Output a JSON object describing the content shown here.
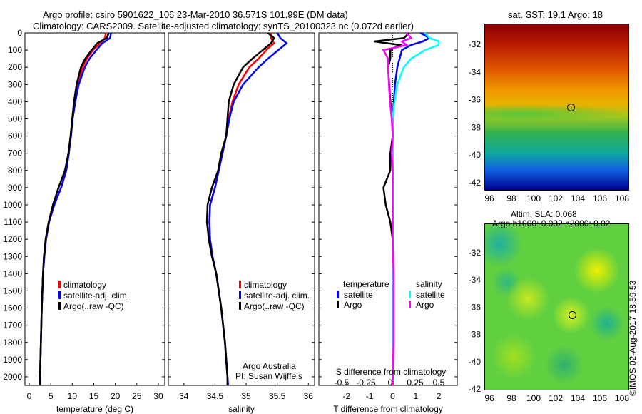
{
  "title": {
    "line1": "Argo profile: csiro 5901622_106 23-Mar-2010 36.571S 101.99E (DM data)",
    "line2": "Climatology: CARS2009. Satellite-adjusted climatology: synTS_20100323.nc (0.072d earlier)"
  },
  "credit": "©IMOS 02-Aug-2017 18:59:53",
  "colors": {
    "climatology": "#ff0000",
    "satellite": "#0000ff",
    "argo": "#000000",
    "s_satellite": "#00ffff",
    "s_argo": "#ff00ff"
  },
  "chart_data": [
    {
      "type": "line",
      "name": "temperature",
      "xlabel": "temperature (deg C)",
      "xlim": [
        -1,
        31.5
      ],
      "xticks": [
        0,
        5,
        10,
        15,
        20,
        25,
        30
      ],
      "ylim": [
        2050,
        0
      ],
      "yticks": [
        0,
        100,
        200,
        300,
        400,
        500,
        600,
        700,
        800,
        900,
        1000,
        1100,
        1200,
        1300,
        1400,
        1500,
        1600,
        1700,
        1800,
        1900,
        2000
      ],
      "depth": [
        0,
        30,
        60,
        100,
        150,
        200,
        300,
        400,
        500,
        600,
        700,
        800,
        900,
        1000,
        1100,
        1200,
        1300,
        1400,
        1600,
        1800,
        2000,
        2050
      ],
      "series": [
        {
          "name": "climatology",
          "color": "#ff0000",
          "values": [
            17.8,
            17.6,
            16.5,
            14.8,
            13.4,
            12.4,
            11.2,
            10.5,
            10.0,
            9.6,
            9.2,
            8.6,
            7.4,
            5.8,
            4.6,
            3.9,
            3.5,
            3.2,
            2.9,
            2.7,
            2.5,
            2.5
          ]
        },
        {
          "name": "satellite-adj. clim.",
          "color": "#0000ff",
          "values": [
            19.0,
            18.8,
            17.0,
            15.6,
            14.0,
            12.9,
            11.5,
            10.7,
            10.1,
            9.7,
            9.2,
            8.6,
            7.4,
            5.8,
            4.6,
            3.9,
            3.5,
            3.2,
            2.9,
            2.7,
            2.5,
            2.5
          ]
        },
        {
          "name": "Argo(..raw -QC)",
          "color": "#000000",
          "values": [
            18.5,
            18.0,
            15.8,
            14.5,
            13.0,
            12.0,
            11.0,
            10.4,
            10.0,
            9.6,
            9.1,
            8.3,
            6.8,
            5.5,
            4.5,
            3.8,
            3.4,
            3.2,
            2.9,
            2.7,
            2.5,
            2.5
          ]
        }
      ],
      "legend": [
        "climatology",
        "satellite-adj. clim.",
        "Argo(..raw -QC)"
      ]
    },
    {
      "type": "line",
      "name": "salinity",
      "xlabel": "salinity",
      "xlim": [
        33.75,
        36.1
      ],
      "xticks": [
        34,
        34.5,
        35,
        35.5,
        36
      ],
      "depth": [
        0,
        30,
        60,
        90,
        150,
        200,
        300,
        400,
        500,
        600,
        700,
        800,
        900,
        1000,
        1100,
        1200,
        1300,
        1400,
        1600,
        1800,
        2000,
        2050
      ],
      "series": [
        {
          "name": "climatology",
          "color": "#ff0000",
          "values": [
            35.4,
            35.4,
            35.45,
            35.35,
            35.2,
            35.05,
            34.88,
            34.78,
            34.72,
            34.68,
            34.62,
            34.56,
            34.5,
            34.42,
            34.41,
            34.42,
            34.46,
            34.52,
            34.6,
            34.66,
            34.7,
            34.71
          ]
        },
        {
          "name": "satellite-adj. clim.",
          "color": "#0000ff",
          "values": [
            35.5,
            35.55,
            35.65,
            35.55,
            35.35,
            35.2,
            34.95,
            34.8,
            34.73,
            34.68,
            34.62,
            34.56,
            34.5,
            34.42,
            34.41,
            34.42,
            34.46,
            34.52,
            34.6,
            34.66,
            34.7,
            34.71
          ]
        },
        {
          "name": "Argo(..raw -QC)",
          "color": "#000000",
          "values": [
            35.35,
            35.45,
            35.4,
            35.3,
            35.1,
            34.95,
            34.8,
            34.72,
            34.7,
            34.68,
            34.6,
            34.55,
            34.45,
            34.38,
            34.37,
            34.4,
            34.45,
            34.52,
            34.6,
            34.66,
            34.7,
            34.7
          ]
        }
      ],
      "legend": [
        "climatology",
        "satellite-adj. clim.",
        "Argo(..raw -QC)"
      ],
      "annotation": [
        "Argo Australia",
        "PI: Susan Wijffels"
      ]
    },
    {
      "type": "line",
      "name": "difference",
      "xlabel": "T difference from climatology",
      "xlabel2": "S difference from climatology",
      "xlim": [
        -3.2,
        2.8
      ],
      "xticks": [
        -2,
        -1,
        0,
        1,
        2
      ],
      "x2ticks": [
        "-0.5",
        "-0.25",
        "0",
        "0.25",
        "0.5"
      ],
      "depth": [
        0,
        30,
        50,
        70,
        100,
        150,
        200,
        300,
        400,
        500,
        600,
        700,
        800,
        900,
        1000,
        1100,
        1200,
        1400,
        1600,
        1800,
        2000,
        2050
      ],
      "series": [
        {
          "name": "T satellite",
          "color": "#0000ff",
          "values": [
            1.2,
            1.6,
            1.3,
            0.8,
            0.4,
            0.3,
            0.2,
            0.1,
            0.05,
            0,
            0,
            0,
            0,
            0,
            0,
            0,
            0,
            0,
            0,
            0,
            0,
            0
          ]
        },
        {
          "name": "T Argo",
          "color": "#000000",
          "values": [
            0.7,
            0.5,
            -0.8,
            0.3,
            -0.1,
            -0.1,
            -0.2,
            -0.15,
            -0.1,
            0,
            0,
            -0.1,
            -0.1,
            -0.4,
            -0.3,
            -0.1,
            0,
            0,
            0,
            0,
            0,
            0
          ]
        },
        {
          "name": "S satellite",
          "color": "#00ffff",
          "values": [
            0.35,
            0.4,
            0.5,
            0.5,
            0.35,
            0.2,
            0.12,
            0.05,
            0.02,
            0,
            0,
            0,
            0,
            0,
            0,
            0,
            0,
            0,
            0,
            0,
            0,
            0
          ]
        },
        {
          "name": "S Argo",
          "color": "#ff00ff",
          "values": [
            0.15,
            0.2,
            0.1,
            0.15,
            -0.1,
            -0.05,
            -0.05,
            -0.04,
            -0.03,
            -0.01,
            0,
            -0.01,
            0,
            0,
            0,
            0,
            0,
            0.01,
            0.01,
            0.01,
            0,
            0
          ]
        }
      ],
      "legend_headers": [
        "temperature",
        "salinity"
      ],
      "legend": [
        "satellite",
        "Argo",
        "satellite",
        "Argo"
      ]
    }
  ],
  "maps": [
    {
      "title": "sat. SST: 19.1 Argo: 18",
      "lat_ticks": [
        "-32",
        "-34",
        "-36",
        "-38",
        "-40",
        "-42"
      ],
      "lon_ticks": [
        "96",
        "98",
        "100",
        "102",
        "104",
        "106",
        "108"
      ]
    },
    {
      "title1": "Altim. SLA: 0.068",
      "title2": "Argo h1000: 0.032 h2000: 0.02",
      "lat_ticks": [
        "-32",
        "-34",
        "-36",
        "-38",
        "-40",
        "-42"
      ],
      "lon_ticks": [
        "96",
        "98",
        "100",
        "102",
        "104",
        "106",
        "108"
      ]
    }
  ]
}
